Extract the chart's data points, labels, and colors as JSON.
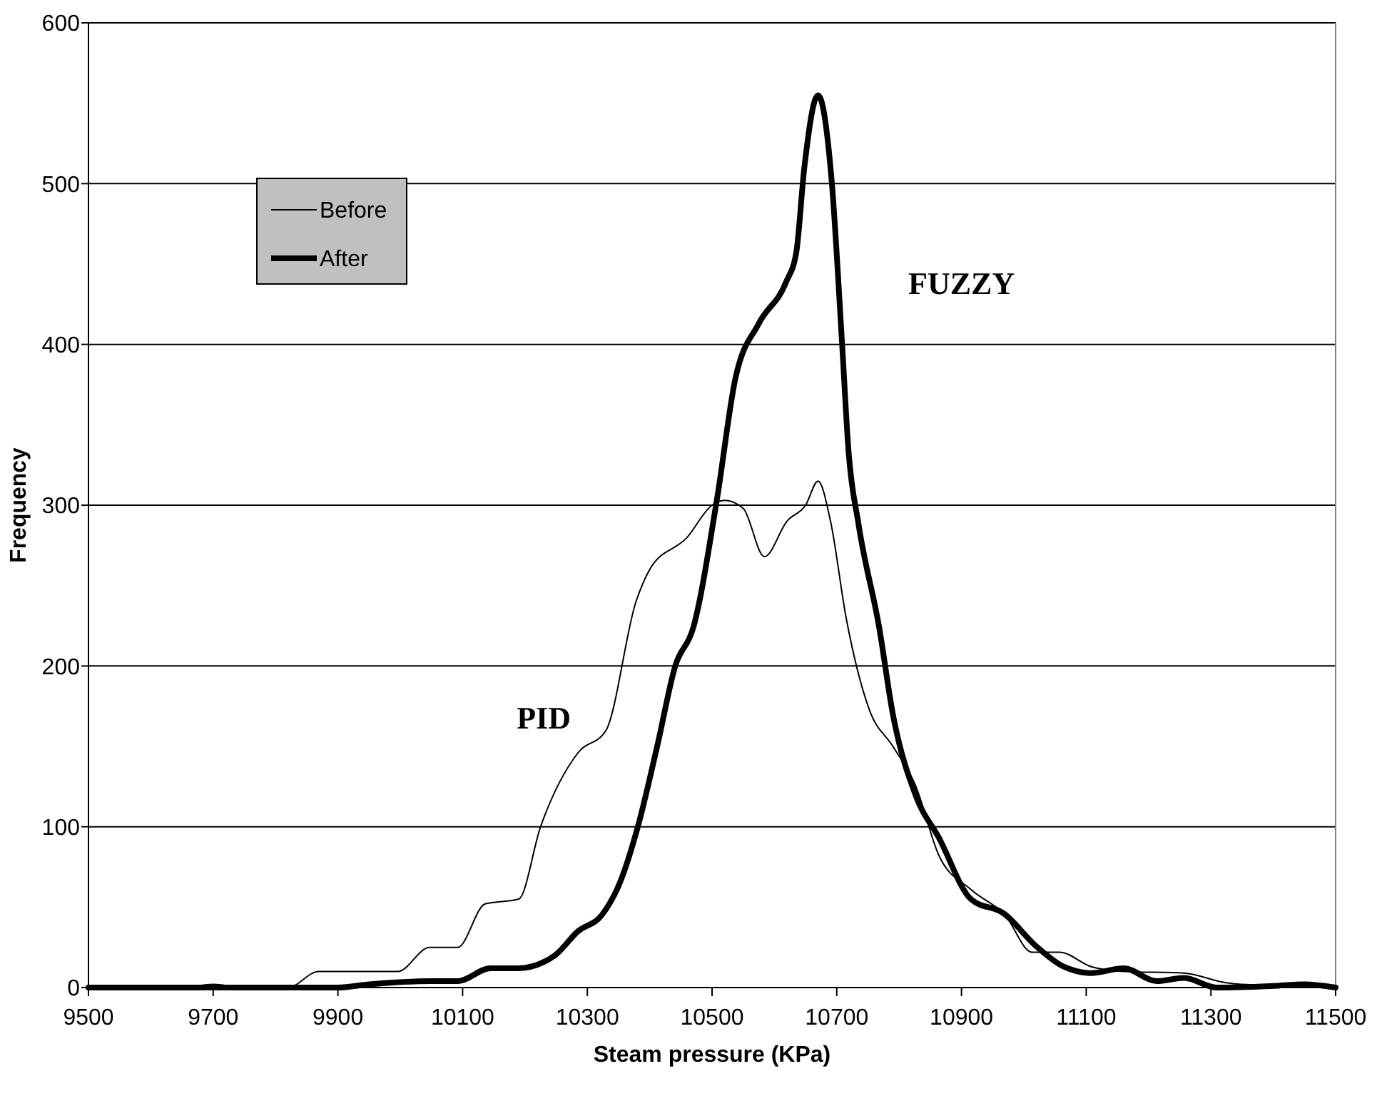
{
  "chart_data": {
    "type": "line",
    "xlabel": "Steam pressure (KPa)",
    "ylabel": "Frequency",
    "xlim": [
      9500,
      11500
    ],
    "xticks": [
      9500,
      9700,
      9900,
      10100,
      10300,
      10500,
      10700,
      10900,
      11100,
      11300,
      11500
    ],
    "ylim": [
      0,
      600
    ],
    "yticks": [
      0,
      100,
      200,
      300,
      400,
      500,
      600
    ],
    "grid": "y",
    "legend": "top left",
    "marker": "none",
    "line_style": "solid",
    "annotations": [
      "PID",
      "FUZZY"
    ],
    "series": [
      {
        "name": "Before",
        "color": "#000000",
        "x": [
          9500,
          9650,
          9700,
          9750,
          9820,
          9869,
          9996,
          10047,
          10092,
          10136,
          10190,
          10225,
          10285,
          10330,
          10378,
          10400,
          10460,
          10500,
          10520,
          10550,
          10584,
          10620,
          10650,
          10670,
          10690,
          10715,
          10752,
          10790,
          10826,
          10864,
          10915,
          10970,
          11013,
          11057,
          11108,
          11160,
          11257,
          11324,
          11400,
          11500
        ],
        "values": [
          0,
          0,
          2,
          0,
          0,
          10,
          10,
          25,
          25,
          52,
          55,
          100,
          146,
          160,
          240,
          260,
          280,
          300,
          303,
          298,
          268,
          290,
          300,
          315,
          290,
          230,
          173,
          150,
          126,
          82,
          61,
          45,
          22,
          22,
          13,
          10,
          9,
          3,
          1,
          0
        ]
      },
      {
        "name": "After",
        "color": "#000000",
        "x": [
          9500,
          9700,
          9850,
          9900,
          9950,
          10050,
          10092,
          10145,
          10190,
          10248,
          10285,
          10323,
          10352,
          10381,
          10412,
          10441,
          10470,
          10508,
          10537,
          10575,
          10619,
          10635,
          10648,
          10670,
          10692,
          10708,
          10719,
          10735,
          10768,
          10790,
          10826,
          10864,
          10915,
          10968,
          11019,
          11064,
          11108,
          11160,
          11213,
          11257,
          11309,
          11400,
          11450,
          11500
        ],
        "values": [
          0,
          0,
          0,
          0,
          2,
          4,
          4,
          12,
          12,
          20,
          35,
          45,
          65,
          100,
          150,
          200,
          224,
          304,
          378,
          413,
          439,
          457,
          510,
          555,
          501,
          404,
          333,
          288,
          224,
          170,
          120,
          93,
          55,
          46,
          26,
          13,
          9,
          12,
          4,
          6,
          0,
          1,
          2,
          0
        ]
      }
    ]
  }
}
